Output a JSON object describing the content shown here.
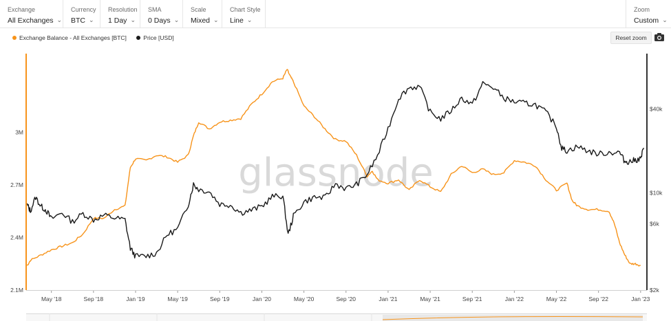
{
  "toolbar": {
    "controls": [
      {
        "label": "Exchange",
        "value": "All Exchanges"
      },
      {
        "label": "Currency",
        "value": "BTC"
      },
      {
        "label": "Resolution",
        "value": "1 Day"
      },
      {
        "label": "SMA",
        "value": "0 Days"
      },
      {
        "label": "Scale",
        "value": "Mixed"
      },
      {
        "label": "Chart Style",
        "value": "Line"
      }
    ],
    "zoom": {
      "label": "Zoom",
      "value": "Custom"
    }
  },
  "reset_zoom_label": "Reset zoom",
  "camera_icon": "camera-icon",
  "watermark": "glassnode",
  "colors": {
    "balance": "#f7931a",
    "price": "#1a1a1a",
    "axis_left": "#f7931a",
    "axis_right": "#333333"
  },
  "chart_data": {
    "type": "line",
    "x_tick_labels": [
      "May '18",
      "Sep '18",
      "Jan '19",
      "May '19",
      "Sep '19",
      "Jan '20",
      "May '20",
      "Sep '20",
      "Jan '21",
      "May '21",
      "Sep '21",
      "Jan '22",
      "May '22",
      "Sep '22",
      "Jan '23"
    ],
    "x_ticks": [
      4,
      8,
      12,
      16,
      20,
      24,
      28,
      32,
      36,
      40,
      44,
      48,
      52,
      56,
      60
    ],
    "xlim": [
      1.6,
      60.6
    ],
    "left_axis": {
      "label": "",
      "ticks": [
        3000000,
        2700000,
        2400000,
        2100000
      ],
      "tick_labels": [
        "3M",
        "2.7M",
        "2.4M",
        "2.1M"
      ],
      "ylim": [
        2100000,
        3450000
      ]
    },
    "right_axis": {
      "label": "",
      "scale": "log",
      "ticks": [
        40000,
        10000,
        6000,
        2000
      ],
      "tick_labels": [
        "$40k",
        "$10k",
        "$6k",
        "$2k"
      ],
      "ylim": [
        2000,
        100000
      ]
    },
    "legend": {
      "placement": "top-left"
    },
    "series": [
      {
        "name": "Exchange Balance - All Exchanges [BTC]",
        "axis": "left",
        "points": [
          [
            1.7,
            2240000.0
          ],
          [
            2,
            2270000.0
          ],
          [
            3,
            2300000.0
          ],
          [
            4,
            2330000.0
          ],
          [
            5,
            2350000.0
          ],
          [
            6,
            2370000.0
          ],
          [
            7,
            2420000.0
          ],
          [
            8,
            2510000.0
          ],
          [
            9,
            2510000.0
          ],
          [
            10,
            2560000.0
          ],
          [
            11,
            2580000.0
          ],
          [
            11.5,
            2800000.0
          ],
          [
            12,
            2850000.0
          ],
          [
            13,
            2840000.0
          ],
          [
            14,
            2870000.0
          ],
          [
            15,
            2860000.0
          ],
          [
            16,
            2830000.0
          ],
          [
            17,
            2870000.0
          ],
          [
            17.5,
            2980000.0
          ],
          [
            18,
            3060000.0
          ],
          [
            19,
            3020000.0
          ],
          [
            20,
            3060000.0
          ],
          [
            21,
            3070000.0
          ],
          [
            22,
            3080000.0
          ],
          [
            23,
            3160000.0
          ],
          [
            24,
            3220000.0
          ],
          [
            25,
            3290000.0
          ],
          [
            26,
            3310000.0
          ],
          [
            26.4,
            3360000.0
          ],
          [
            26.7,
            3320000.0
          ],
          [
            27,
            3290000.0
          ],
          [
            28,
            3150000.0
          ],
          [
            29,
            3090000.0
          ],
          [
            30,
            3020000.0
          ],
          [
            31,
            2960000.0
          ],
          [
            32,
            2950000.0
          ],
          [
            33,
            2870000.0
          ],
          [
            34,
            2750000.0
          ],
          [
            34.5,
            2780000.0
          ],
          [
            35,
            2730000.0
          ],
          [
            36,
            2710000.0
          ],
          [
            37,
            2730000.0
          ],
          [
            38,
            2670000.0
          ],
          [
            39,
            2730000.0
          ],
          [
            40,
            2690000.0
          ],
          [
            41,
            2660000.0
          ],
          [
            42,
            2760000.0
          ],
          [
            43,
            2810000.0
          ],
          [
            44,
            2770000.0
          ],
          [
            45,
            2790000.0
          ],
          [
            46,
            2760000.0
          ],
          [
            47,
            2770000.0
          ],
          [
            48,
            2840000.0
          ],
          [
            49,
            2830000.0
          ],
          [
            50,
            2810000.0
          ],
          [
            51,
            2730000.0
          ],
          [
            52,
            2670000.0
          ],
          [
            53,
            2710000.0
          ],
          [
            53.5,
            2610000.0
          ],
          [
            54,
            2580000.0
          ],
          [
            55,
            2560000.0
          ],
          [
            56,
            2560000.0
          ],
          [
            57,
            2550000.0
          ],
          [
            57.5,
            2480000.0
          ],
          [
            58,
            2370000.0
          ],
          [
            58.5,
            2300000.0
          ],
          [
            59,
            2250000.0
          ],
          [
            59.5,
            2250000.0
          ],
          [
            60,
            2240000.0
          ]
        ]
      },
      {
        "name": "Price [USD]",
        "axis": "right",
        "points": [
          [
            1.7,
            8200
          ],
          [
            2,
            7400
          ],
          [
            2.5,
            9300
          ],
          [
            3,
            8000
          ],
          [
            3.5,
            7500
          ],
          [
            4,
            6500
          ],
          [
            5,
            7200
          ],
          [
            6,
            6200
          ],
          [
            7,
            7100
          ],
          [
            8,
            6400
          ],
          [
            9,
            6900
          ],
          [
            10,
            6600
          ],
          [
            11,
            6400
          ],
          [
            11.5,
            4000
          ],
          [
            12,
            3500
          ],
          [
            13,
            3500
          ],
          [
            14,
            3700
          ],
          [
            15,
            5000
          ],
          [
            16,
            5500
          ],
          [
            17,
            8200
          ],
          [
            17.5,
            11500
          ],
          [
            18,
            10600
          ],
          [
            19,
            10200
          ],
          [
            20,
            8300
          ],
          [
            21,
            8200
          ],
          [
            22,
            7200
          ],
          [
            23,
            7500
          ],
          [
            24,
            8000
          ],
          [
            25,
            9400
          ],
          [
            26,
            9500
          ],
          [
            26.5,
            5000
          ],
          [
            27,
            6800
          ],
          [
            28,
            8600
          ],
          [
            29,
            9300
          ],
          [
            30,
            9200
          ],
          [
            31,
            11600
          ],
          [
            32,
            10700
          ],
          [
            33,
            11500
          ],
          [
            34,
            13500
          ],
          [
            35,
            18500
          ],
          [
            36,
            29000
          ],
          [
            37,
            48000
          ],
          [
            38,
            57000
          ],
          [
            39,
            58000
          ],
          [
            40,
            38000
          ],
          [
            41,
            34000
          ],
          [
            42,
            39000
          ],
          [
            43,
            48000
          ],
          [
            44,
            43000
          ],
          [
            45,
            61000
          ],
          [
            46,
            57000
          ],
          [
            47,
            48000
          ],
          [
            48,
            45000
          ],
          [
            49,
            44000
          ],
          [
            50,
            43000
          ],
          [
            51,
            38000
          ],
          [
            52,
            30000
          ],
          [
            52.5,
            21000
          ],
          [
            53,
            20000
          ],
          [
            54,
            21500
          ],
          [
            55,
            20000
          ],
          [
            56,
            19000
          ],
          [
            57,
            19500
          ],
          [
            58,
            19500
          ],
          [
            58.5,
            16800
          ],
          [
            59,
            16800
          ],
          [
            59.5,
            17200
          ],
          [
            60,
            17500
          ],
          [
            60.3,
            21000
          ]
        ]
      }
    ]
  }
}
